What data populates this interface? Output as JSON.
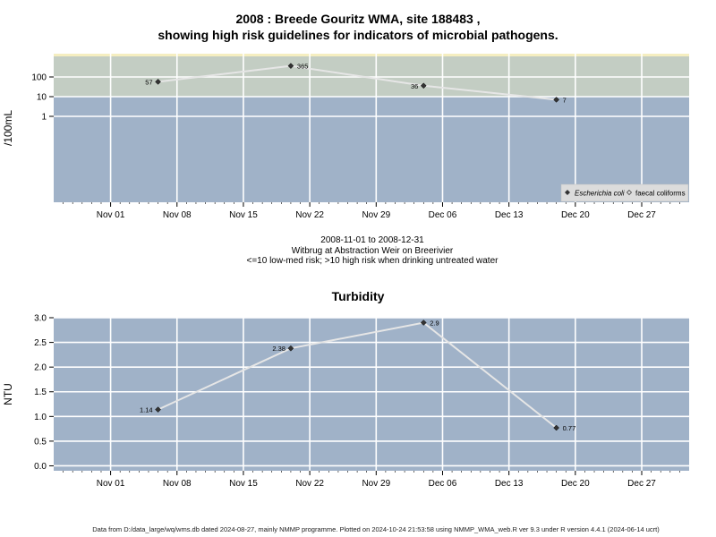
{
  "chart_data": [
    {
      "type": "line",
      "title_line1": "2008 : Breede Gouritz WMA, site 188483 ,",
      "title_line2": "showing high risk guidelines for indicators of microbial pathogens.",
      "ylabel": "/100mL",
      "y_scale": "log",
      "xlim": [
        "2008-10-26",
        "2009-01-01"
      ],
      "x_tick_labels": [
        "Nov 01",
        "Nov 08",
        "Nov 15",
        "Nov 22",
        "Nov 29",
        "Dec 06",
        "Dec 13",
        "Dec 20",
        "Dec 27"
      ],
      "y_tick_labels": [
        "1",
        "10",
        "100"
      ],
      "y_ticks": [
        1,
        10,
        100
      ],
      "guideline_bands": [
        {
          "label": "<=10 low-med risk",
          "from": 0,
          "to": 10,
          "color": "#a0b2c8"
        },
        {
          "label": ">10 high risk",
          "from": 10,
          "to": 410,
          "color": "#c3cdc3"
        }
      ],
      "series": [
        {
          "name": "Escherichia coli",
          "marker": "filled-diamond",
          "x": [
            "2008-11-06",
            "2008-11-20",
            "2008-12-04",
            "2008-12-18"
          ],
          "values": [
            57,
            365,
            36,
            7
          ],
          "labels": [
            "57",
            "365",
            "36",
            "7"
          ]
        }
      ],
      "legend": {
        "position": "bottom-right",
        "entries": [
          "Escherichia coli",
          "faecal coliforms"
        ]
      },
      "grid": true
    },
    {
      "type": "line",
      "title": "Turbidity",
      "ylabel": "NTU",
      "xlim": [
        "2008-10-26",
        "2009-01-01"
      ],
      "ylim": [
        -0.1,
        3.0
      ],
      "x_tick_labels": [
        "Nov 01",
        "Nov 08",
        "Nov 15",
        "Nov 22",
        "Nov 29",
        "Dec 06",
        "Dec 13",
        "Dec 20",
        "Dec 27"
      ],
      "y_tick_labels": [
        "0.0",
        "0.5",
        "1.0",
        "1.5",
        "2.0",
        "2.5",
        "3.0"
      ],
      "y_ticks": [
        0,
        0.5,
        1.0,
        1.5,
        2.0,
        2.5,
        3.0
      ],
      "series": [
        {
          "name": "Turbidity",
          "marker": "filled-diamond",
          "x": [
            "2008-11-06",
            "2008-11-20",
            "2008-12-04",
            "2008-12-18"
          ],
          "values": [
            1.14,
            2.38,
            2.9,
            0.77
          ],
          "labels": [
            "1.14",
            "2.38",
            "2.9",
            "0.77"
          ]
        }
      ],
      "grid": true
    }
  ],
  "caption": {
    "line1": "2008-11-01 to 2008-12-31",
    "line2": "Witbrug at Abstraction Weir on Breerivier",
    "line3": "<=10 low-med risk; >10 high risk when drinking untreated water"
  },
  "footer": "Data from D:/data_large/wq/wms.db dated 2024-08-27, mainly NMMP programme. Plotted on 2024-10-24 21:53:58 using NMMP_WMA_web.R ver 9.3 under R version 4.4.1 (2024-06-14 ucrt)",
  "colors": {
    "low_band": "#a0b2c8",
    "high_band": "#c3cdc3",
    "top_strip": "#f5eec0",
    "turbidity_bg": "#a0b2c8",
    "grid": "#ffffff",
    "line": "#e6e6e6",
    "marker": "#333333"
  }
}
